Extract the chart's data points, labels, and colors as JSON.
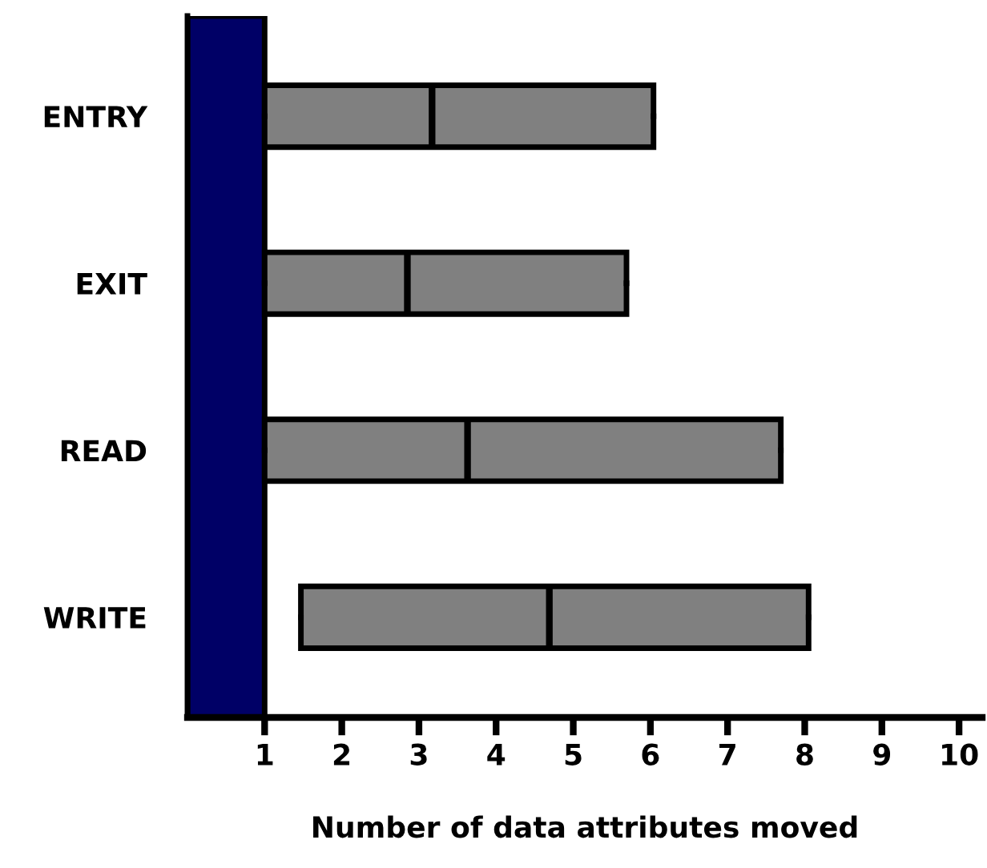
{
  "chart_data": {
    "type": "box",
    "orientation": "horizontal",
    "xlabel": "Number of data attributes moved",
    "categories": [
      "ENTRY",
      "EXIT",
      "READ",
      "WRITE"
    ],
    "color": "#808080",
    "boxes": [
      {
        "low": 1,
        "q1": 1,
        "median": 3.17,
        "q3": 6.04,
        "high": 6.04
      },
      {
        "low": 1,
        "q1": 1,
        "median": 2.85,
        "q3": 5.69,
        "high": 5.69
      },
      {
        "low": 1,
        "q1": 1,
        "median": 3.63,
        "q3": 7.69,
        "high": 7.69
      },
      {
        "low": 1.47,
        "q1": 1.47,
        "median": 4.69,
        "q3": 8.05,
        "high": 8.05
      }
    ],
    "xlim": [
      0,
      10.3
    ],
    "xticks": [
      1,
      2,
      3,
      4,
      5,
      6,
      7,
      8,
      9,
      10
    ],
    "bands": [
      {
        "axis": "x",
        "from": 0,
        "to": 1,
        "color": "#000066"
      }
    ],
    "grid": false,
    "legend": false
  }
}
